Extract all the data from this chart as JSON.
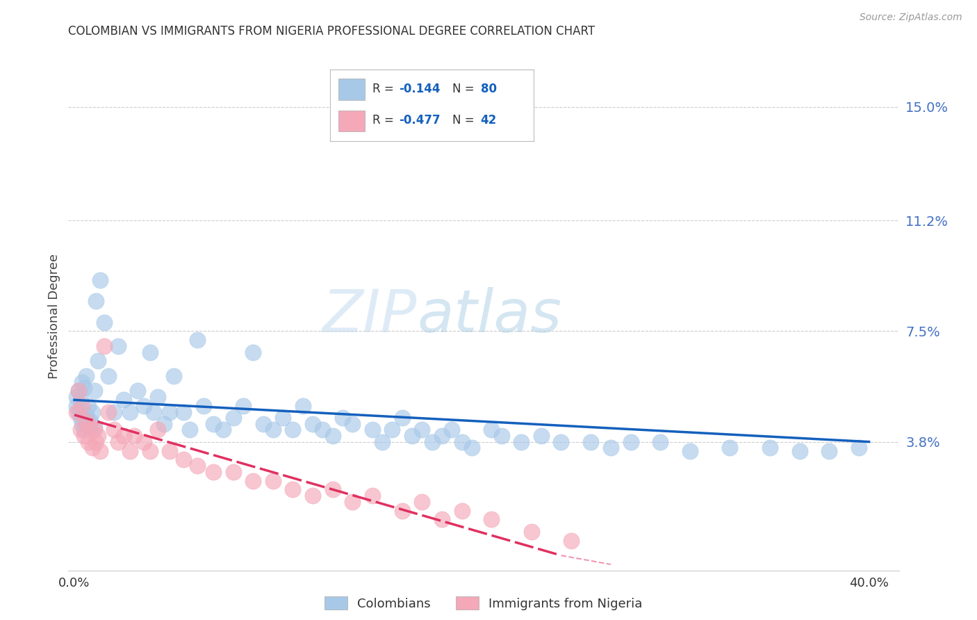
{
  "title": "COLOMBIAN VS IMMIGRANTS FROM NIGERIA PROFESSIONAL DEGREE CORRELATION CHART",
  "source": "Source: ZipAtlas.com",
  "ylabel": "Professional Degree",
  "y_ticks": [
    0.038,
    0.075,
    0.112,
    0.15
  ],
  "y_tick_labels": [
    "3.8%",
    "7.5%",
    "11.2%",
    "15.0%"
  ],
  "x_ticks": [
    0.0,
    0.4
  ],
  "x_tick_labels": [
    "0.0%",
    "40.0%"
  ],
  "x_lim": [
    -0.003,
    0.415
  ],
  "y_lim": [
    -0.005,
    0.165
  ],
  "watermark_zip": "ZIP",
  "watermark_atlas": "atlas",
  "color_blue": "#A8C8E8",
  "color_pink": "#F4A8B8",
  "color_blue_line": "#1460BD",
  "color_pink_line": "#E03060",
  "color_title": "#333333",
  "color_axis_right": "#4472C4",
  "color_grid": "#CCCCCC",
  "scatter_blue_x": [
    0.001,
    0.001,
    0.002,
    0.002,
    0.003,
    0.003,
    0.004,
    0.004,
    0.005,
    0.005,
    0.006,
    0.006,
    0.007,
    0.007,
    0.008,
    0.009,
    0.01,
    0.01,
    0.011,
    0.012,
    0.013,
    0.015,
    0.017,
    0.02,
    0.022,
    0.025,
    0.028,
    0.032,
    0.035,
    0.038,
    0.04,
    0.042,
    0.045,
    0.048,
    0.05,
    0.055,
    0.058,
    0.062,
    0.065,
    0.07,
    0.075,
    0.08,
    0.085,
    0.09,
    0.095,
    0.1,
    0.105,
    0.11,
    0.115,
    0.12,
    0.125,
    0.13,
    0.135,
    0.14,
    0.15,
    0.155,
    0.16,
    0.165,
    0.17,
    0.175,
    0.18,
    0.185,
    0.19,
    0.195,
    0.2,
    0.21,
    0.215,
    0.225,
    0.235,
    0.245,
    0.26,
    0.27,
    0.28,
    0.295,
    0.31,
    0.33,
    0.35,
    0.365,
    0.38,
    0.395
  ],
  "scatter_blue_y": [
    0.05,
    0.053,
    0.048,
    0.055,
    0.046,
    0.052,
    0.044,
    0.058,
    0.042,
    0.056,
    0.047,
    0.06,
    0.043,
    0.05,
    0.045,
    0.048,
    0.055,
    0.043,
    0.085,
    0.065,
    0.092,
    0.078,
    0.06,
    0.048,
    0.07,
    0.052,
    0.048,
    0.055,
    0.05,
    0.068,
    0.048,
    0.053,
    0.044,
    0.048,
    0.06,
    0.048,
    0.042,
    0.072,
    0.05,
    0.044,
    0.042,
    0.046,
    0.05,
    0.068,
    0.044,
    0.042,
    0.046,
    0.042,
    0.05,
    0.044,
    0.042,
    0.04,
    0.046,
    0.044,
    0.042,
    0.038,
    0.042,
    0.046,
    0.04,
    0.042,
    0.038,
    0.04,
    0.042,
    0.038,
    0.036,
    0.042,
    0.04,
    0.038,
    0.04,
    0.038,
    0.038,
    0.036,
    0.038,
    0.038,
    0.035,
    0.036,
    0.036,
    0.035,
    0.035,
    0.036
  ],
  "scatter_pink_x": [
    0.001,
    0.002,
    0.003,
    0.004,
    0.005,
    0.006,
    0.007,
    0.008,
    0.009,
    0.01,
    0.011,
    0.012,
    0.013,
    0.015,
    0.017,
    0.02,
    0.022,
    0.025,
    0.028,
    0.03,
    0.035,
    0.038,
    0.042,
    0.048,
    0.055,
    0.062,
    0.07,
    0.08,
    0.09,
    0.1,
    0.11,
    0.12,
    0.13,
    0.14,
    0.15,
    0.165,
    0.175,
    0.185,
    0.195,
    0.21,
    0.23,
    0.25
  ],
  "scatter_pink_y": [
    0.048,
    0.055,
    0.042,
    0.05,
    0.04,
    0.045,
    0.038,
    0.043,
    0.036,
    0.042,
    0.038,
    0.04,
    0.035,
    0.07,
    0.048,
    0.042,
    0.038,
    0.04,
    0.035,
    0.04,
    0.038,
    0.035,
    0.042,
    0.035,
    0.032,
    0.03,
    0.028,
    0.028,
    0.025,
    0.025,
    0.022,
    0.02,
    0.022,
    0.018,
    0.02,
    0.015,
    0.018,
    0.012,
    0.015,
    0.012,
    0.008,
    0.005
  ],
  "blue_line_x0": 0.0,
  "blue_line_x1": 0.4,
  "blue_line_y0": 0.052,
  "blue_line_y1": 0.038,
  "pink_line_x0": 0.0,
  "pink_line_x1": 0.245,
  "pink_line_y0": 0.047,
  "pink_line_y1": 0.0
}
